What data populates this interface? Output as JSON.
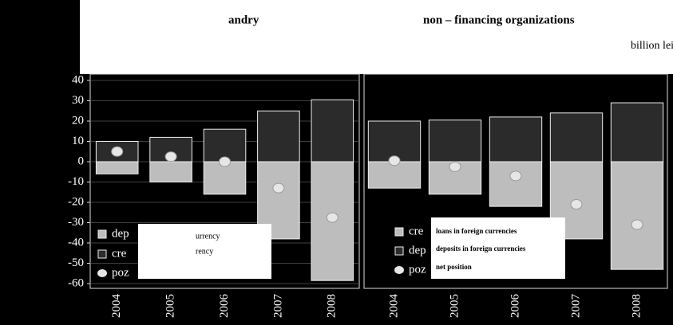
{
  "chart_data": [
    {
      "type": "bar",
      "subtitle": "andry",
      "categories": [
        "2004",
        "2005",
        "2006",
        "2007",
        "2008"
      ],
      "series": [
        {
          "name": "dep",
          "color": "#bdbdbd",
          "values": [
            -6,
            -10,
            -16,
            -38,
            -58.5
          ]
        },
        {
          "name": "cre",
          "color": "#2b2b2b",
          "values": [
            10,
            12,
            16,
            25,
            30.5
          ]
        },
        {
          "name": "poz",
          "color": "#e6e6e6",
          "values": [
            5,
            2.5,
            0,
            -13,
            -27.5
          ]
        }
      ],
      "overlay_labels": [
        "urrency",
        "rency"
      ],
      "ylim": [
        -60,
        40
      ],
      "yticks": [
        -60,
        -50,
        -40,
        -30,
        -20,
        -10,
        0,
        10,
        20,
        30,
        40
      ],
      "grid": true
    },
    {
      "type": "bar",
      "subtitle": "non – financing organizations",
      "unit": "billion lei",
      "categories": [
        "2004",
        "2005",
        "2006",
        "2007",
        "2008"
      ],
      "series": [
        {
          "name": "cre",
          "color": "#bdbdbd",
          "values": [
            -13,
            -16,
            -22,
            -38,
            -53
          ]
        },
        {
          "name": "dep",
          "color": "#2b2b2b",
          "values": [
            20,
            20.5,
            22,
            24,
            29
          ]
        },
        {
          "name": "poz",
          "color": "#e6e6e6",
          "values": [
            0.5,
            -2.5,
            -7,
            -21,
            -31
          ]
        }
      ],
      "overlay_labels": [
        "loans in foreign currencies",
        "deposits in foreign currencies",
        "net position"
      ],
      "ylim": [
        -60,
        40
      ],
      "grid": true
    }
  ]
}
